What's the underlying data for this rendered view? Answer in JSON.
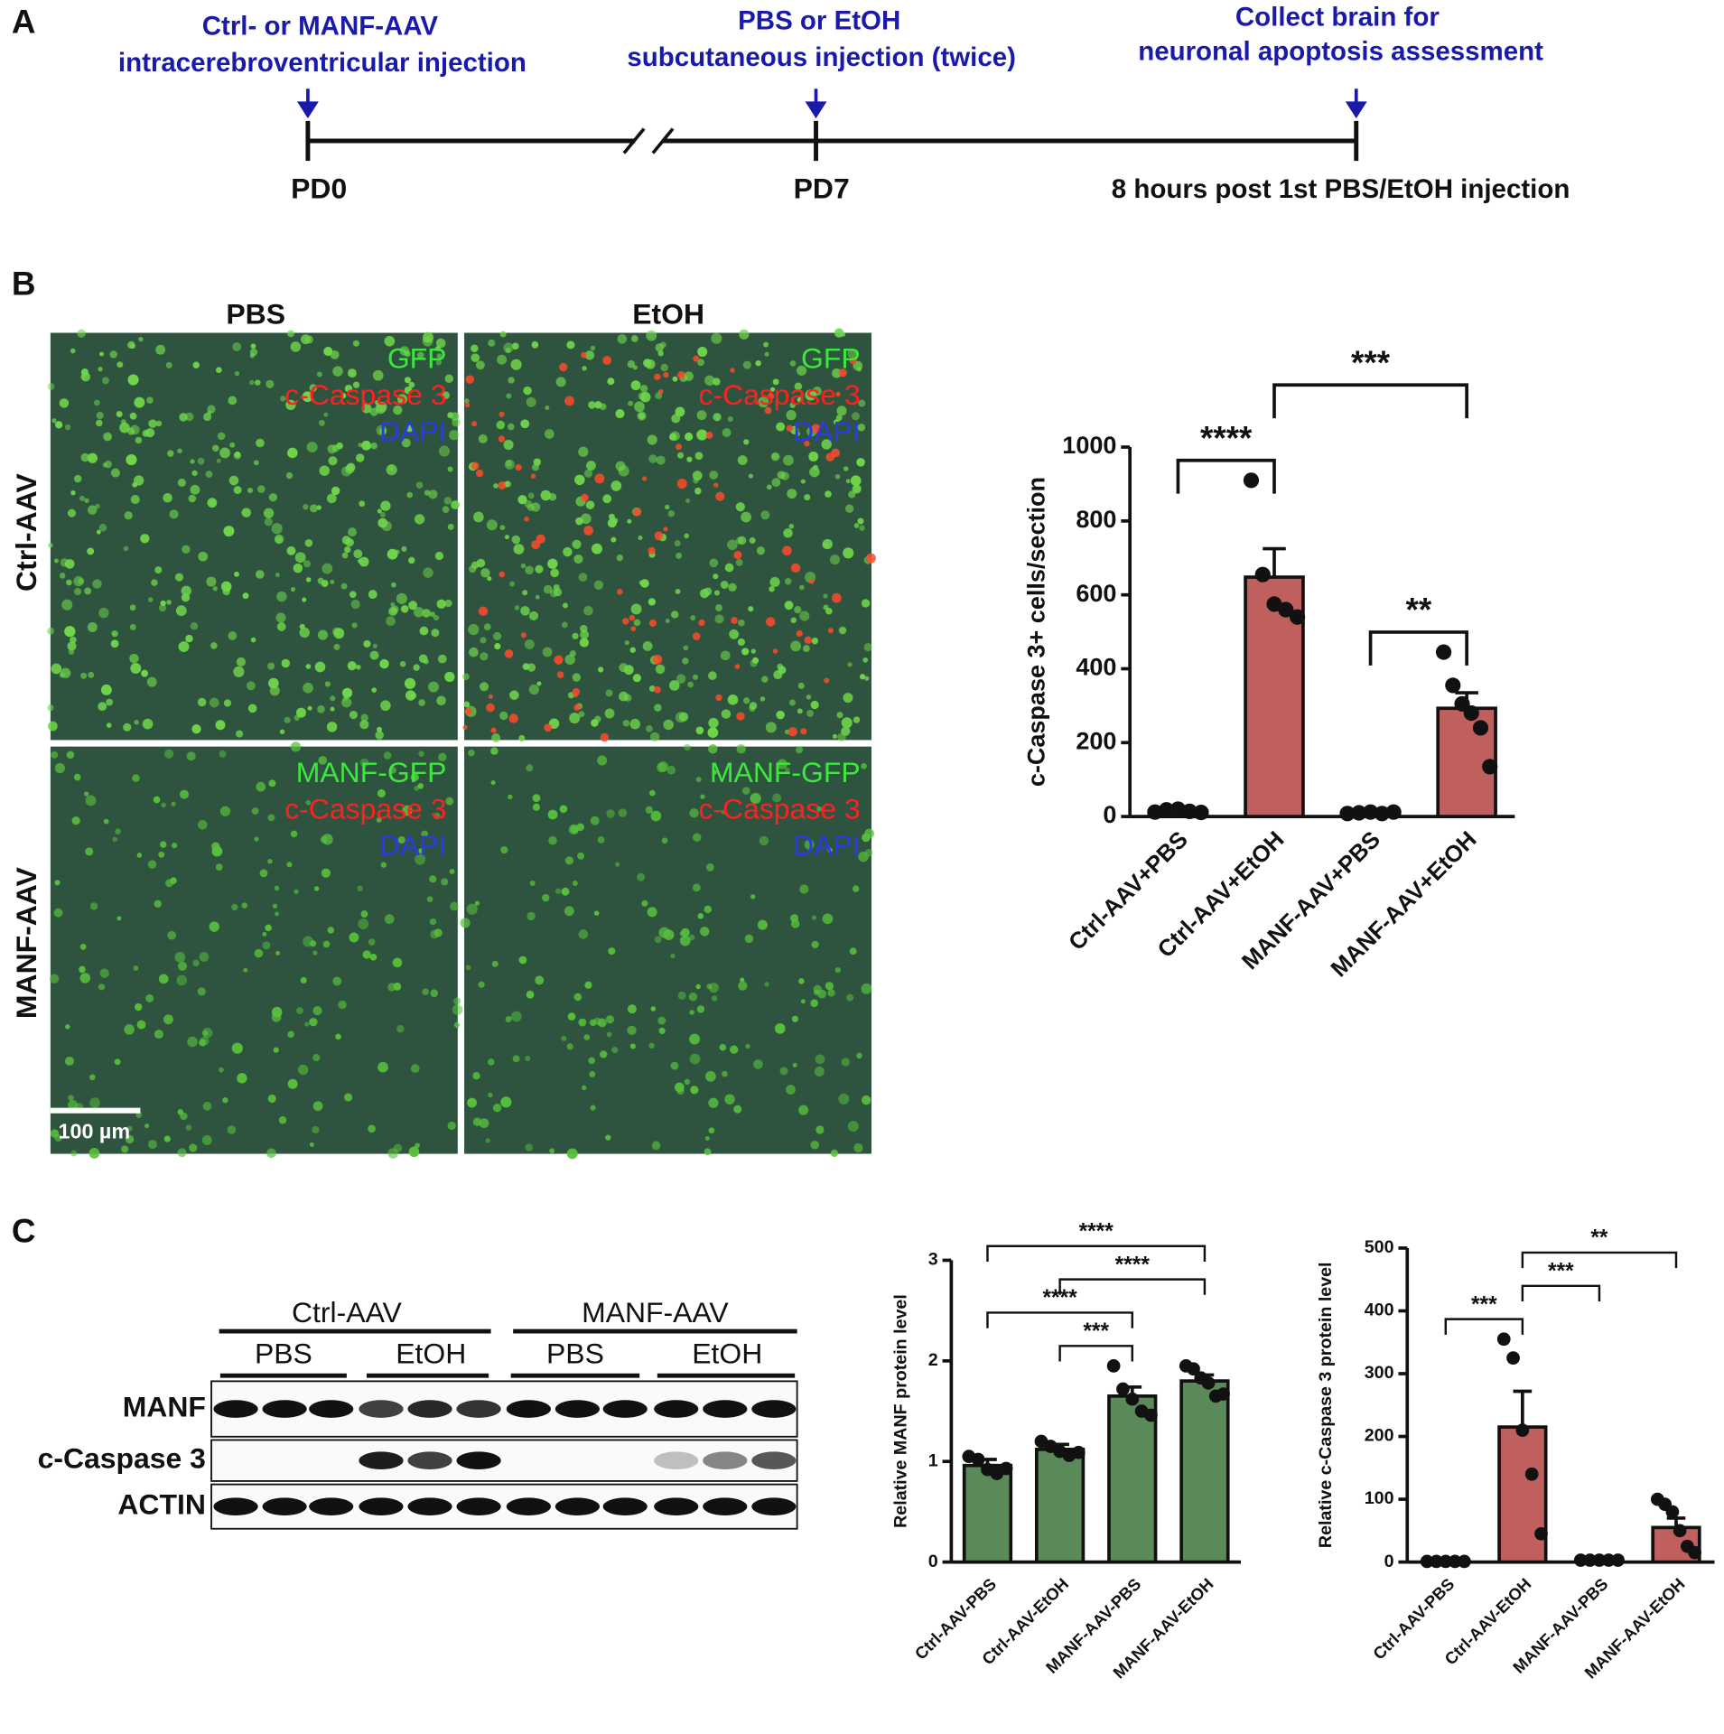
{
  "panel_labels": [
    "A",
    "B",
    "C"
  ],
  "timeline": {
    "events": [
      {
        "lines": [
          "Ctrl- or MANF-AAV",
          "intracerebroventricular injection"
        ],
        "label": "PD0"
      },
      {
        "lines": [
          "PBS or EtOH",
          "subcutaneous injection (twice)"
        ],
        "label": "PD7"
      },
      {
        "lines": [
          "Collect brain for",
          "neuronal apoptosis assessment"
        ],
        "label": "8 hours post 1st PBS/EtOH injection"
      }
    ]
  },
  "micrographs": {
    "columns": [
      "PBS",
      "EtOH"
    ],
    "rows": [
      "Ctrl-AAV",
      "MANF-AAV"
    ],
    "stains": [
      [
        "GFP",
        "c-Caspase 3",
        "DAPI"
      ],
      [
        "MANF-GFP",
        "c-Caspase 3",
        "DAPI"
      ]
    ],
    "scale_bar": "100 µm"
  },
  "western_blot": {
    "groups": [
      "Ctrl-AAV",
      "MANF-AAV"
    ],
    "treatments": [
      "PBS",
      "EtOH",
      "PBS",
      "EtOH"
    ],
    "bands": [
      "MANF",
      "c-Caspase 3",
      "ACTIN"
    ]
  },
  "chart_data": [
    {
      "type": "bar",
      "ylabel": "c-Caspase 3+ cells/section",
      "categories": [
        "Ctrl-AAV+PBS",
        "Ctrl-AAV+EtOH",
        "MANF-AAV+PBS",
        "MANF-AAV+EtOH"
      ],
      "values": [
        15,
        648,
        10,
        293
      ],
      "errors": [
        3,
        77,
        2,
        42
      ],
      "points": [
        [
          12,
          18,
          20,
          14,
          11
        ],
        [
          910,
          655,
          575,
          560,
          540
        ],
        [
          8,
          10,
          12,
          8,
          12
        ],
        [
          445,
          355,
          305,
          280,
          240,
          135
        ]
      ],
      "color": "#c0605e",
      "ylim": [
        0,
        1000
      ],
      "yticks": [
        0,
        200,
        400,
        600,
        800,
        1000
      ],
      "comparisons": [
        {
          "groups": [
            0,
            1
          ],
          "label": "****"
        },
        {
          "groups": [
            2,
            3
          ],
          "label": "**"
        },
        {
          "groups": [
            1,
            3
          ],
          "label": "***"
        }
      ]
    },
    {
      "type": "bar",
      "ylabel": "Relative MANF protein level",
      "categories": [
        "Ctrl-AAV-PBS",
        "Ctrl-AAV-EtOH",
        "MANF-AAV-PBS",
        "MANF-AAV-EtOH"
      ],
      "values": [
        0.96,
        1.12,
        1.65,
        1.8
      ],
      "errors": [
        0.06,
        0.05,
        0.09,
        0.06
      ],
      "points": [
        [
          1.05,
          1.02,
          0.92,
          0.88,
          0.93
        ],
        [
          1.2,
          1.15,
          1.1,
          1.06,
          1.09
        ],
        [
          1.95,
          1.72,
          1.62,
          1.5,
          1.46
        ],
        [
          1.95,
          1.92,
          1.83,
          1.78,
          1.65,
          1.67
        ]
      ],
      "color": "#5a8a5a",
      "ylim": [
        0,
        3
      ],
      "yticks": [
        0,
        1,
        2,
        3
      ],
      "comparisons": [
        {
          "groups": [
            1,
            2
          ],
          "label": "***"
        },
        {
          "groups": [
            0,
            2
          ],
          "label": "****"
        },
        {
          "groups": [
            1,
            3
          ],
          "label": "****"
        },
        {
          "groups": [
            0,
            3
          ],
          "label": "****"
        }
      ]
    },
    {
      "type": "bar",
      "ylabel": "Relative c-Caspase 3 protein level",
      "categories": [
        "Ctrl-AAV-PBS",
        "Ctrl-AAV-EtOH",
        "MANF-AAV-PBS",
        "MANF-AAV-EtOH"
      ],
      "values": [
        1,
        215,
        3,
        55
      ],
      "errors": [
        1,
        57,
        1,
        15
      ],
      "points": [
        [
          1,
          1,
          1,
          1,
          1
        ],
        [
          355,
          325,
          210,
          140,
          45
        ],
        [
          3,
          3,
          3,
          3,
          3
        ],
        [
          100,
          92,
          80,
          50,
          25,
          15
        ]
      ],
      "color": "#c0605e",
      "ylim": [
        0,
        500
      ],
      "yticks": [
        0,
        100,
        200,
        300,
        400,
        500
      ],
      "comparisons": [
        {
          "groups": [
            0,
            1
          ],
          "label": "***"
        },
        {
          "groups": [
            1,
            2
          ],
          "label": "***"
        },
        {
          "groups": [
            1,
            3
          ],
          "label": "**"
        }
      ]
    }
  ]
}
